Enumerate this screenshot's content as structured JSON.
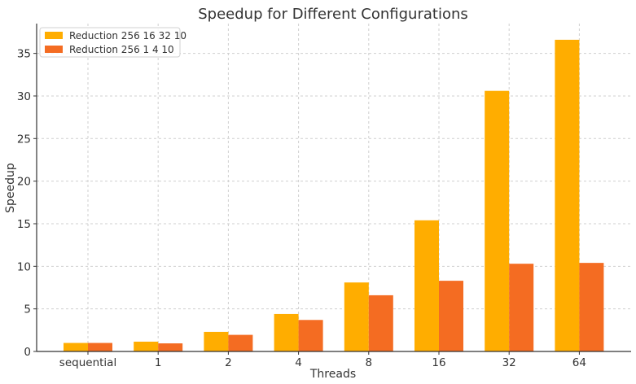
{
  "chart_data": {
    "type": "bar",
    "title": "Speedup for Different Configurations",
    "xlabel": "Threads",
    "ylabel": "Speedup",
    "categories": [
      "sequential",
      "1",
      "2",
      "4",
      "8",
      "16",
      "32",
      "64"
    ],
    "series": [
      {
        "name": "Reduction 256 16 32 10",
        "color": "#ffad00",
        "values": [
          1.0,
          1.15,
          2.3,
          4.4,
          8.1,
          15.4,
          30.6,
          36.6
        ]
      },
      {
        "name": "Reduction 256 1 4 10",
        "color": "#f46c22",
        "values": [
          1.0,
          0.95,
          1.95,
          3.7,
          6.6,
          8.3,
          10.3,
          10.4
        ]
      }
    ],
    "ylim": [
      0,
      38.5
    ],
    "yticks": [
      0,
      5,
      10,
      15,
      20,
      25,
      30,
      35
    ],
    "grid": true,
    "legend_position": "top-left"
  }
}
